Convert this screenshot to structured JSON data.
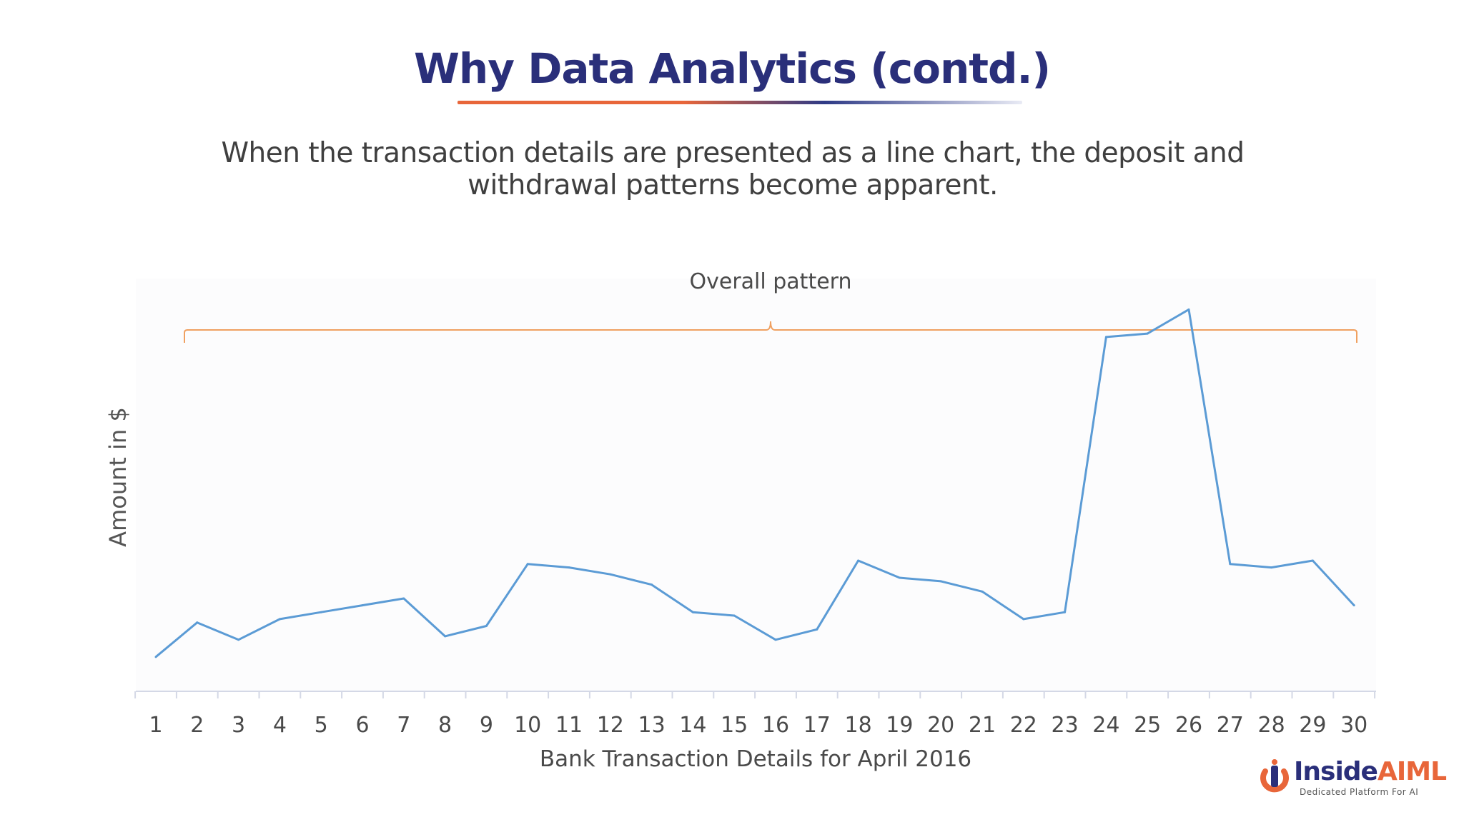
{
  "slide": {
    "title": "Why Data Analytics (contd.)",
    "subtitle_line1": "When the transaction details are presented as a line chart, the deposit and",
    "subtitle_line2": "withdrawal patterns become apparent."
  },
  "logo": {
    "inside": "Inside",
    "aiml": "AIML",
    "tagline": "Dedicated Platform For AI"
  },
  "colors": {
    "title": "#2a2f7a",
    "accent": "#e8663a",
    "line": "#5b9bd5",
    "bracket": "#f0a060"
  },
  "chart_data": {
    "type": "line",
    "title": "",
    "xlabel": "Bank Transaction Details for April 2016",
    "ylabel": "Amount in $",
    "annotation": "Overall pattern",
    "grid": false,
    "x": [
      1,
      2,
      3,
      4,
      5,
      6,
      7,
      8,
      9,
      10,
      11,
      12,
      13,
      14,
      15,
      16,
      17,
      18,
      19,
      20,
      21,
      22,
      23,
      24,
      25,
      26,
      27,
      28,
      29,
      30
    ],
    "series": [
      {
        "values": [
          5,
          15,
          10,
          16,
          18,
          20,
          22,
          11,
          14,
          32,
          31,
          29,
          26,
          18,
          17,
          10,
          13,
          33,
          28,
          27,
          24,
          16,
          18,
          98,
          99,
          106,
          32,
          31,
          33,
          20
        ]
      }
    ],
    "ylim": [
      -5,
      115
    ]
  }
}
